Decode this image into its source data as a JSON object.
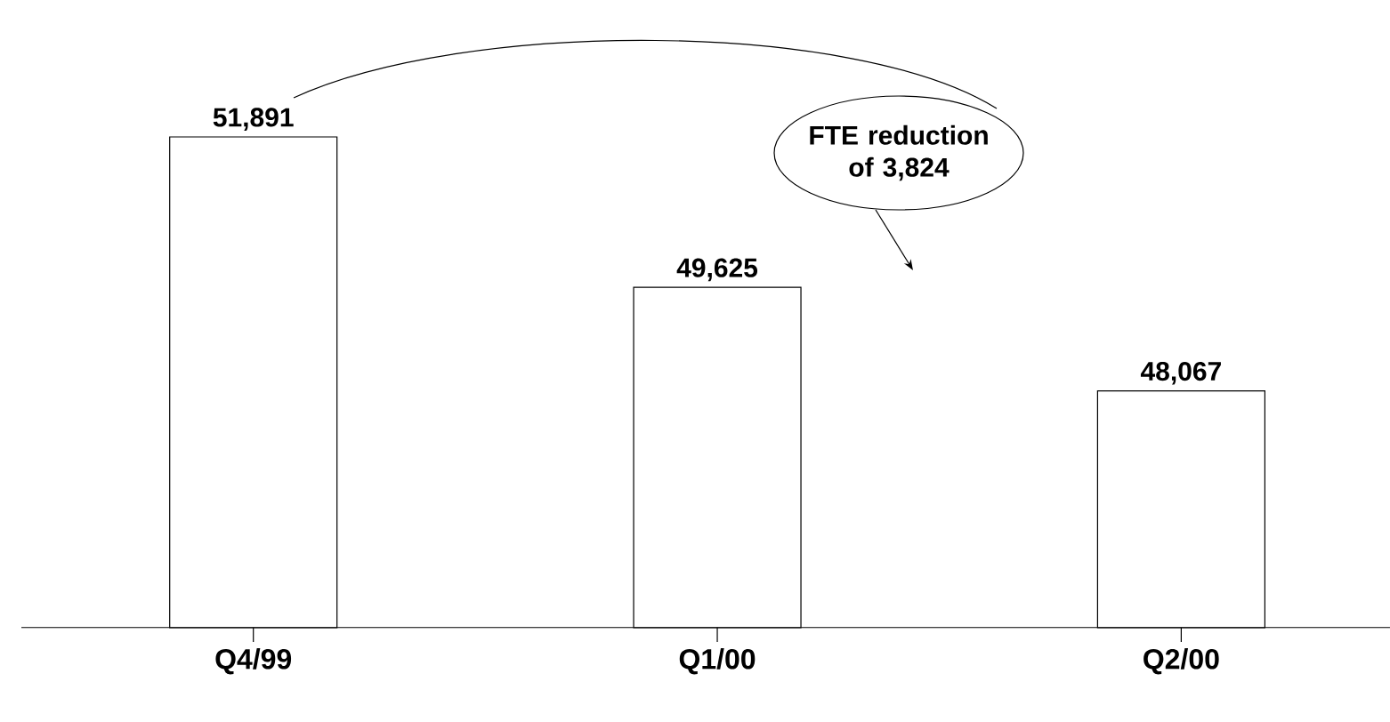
{
  "chart_data": {
    "type": "bar",
    "categories": [
      "Q4/99",
      "Q1/00",
      "Q2/00"
    ],
    "values": [
      51891,
      49625,
      48067
    ],
    "color": "#ffffff",
    "ylim": [
      44500,
      51891
    ],
    "data_labels": true,
    "value_labels": [
      "51,891",
      "49,625",
      "48,067"
    ],
    "annotations": [
      "FTE reduction of 3,824"
    ]
  }
}
